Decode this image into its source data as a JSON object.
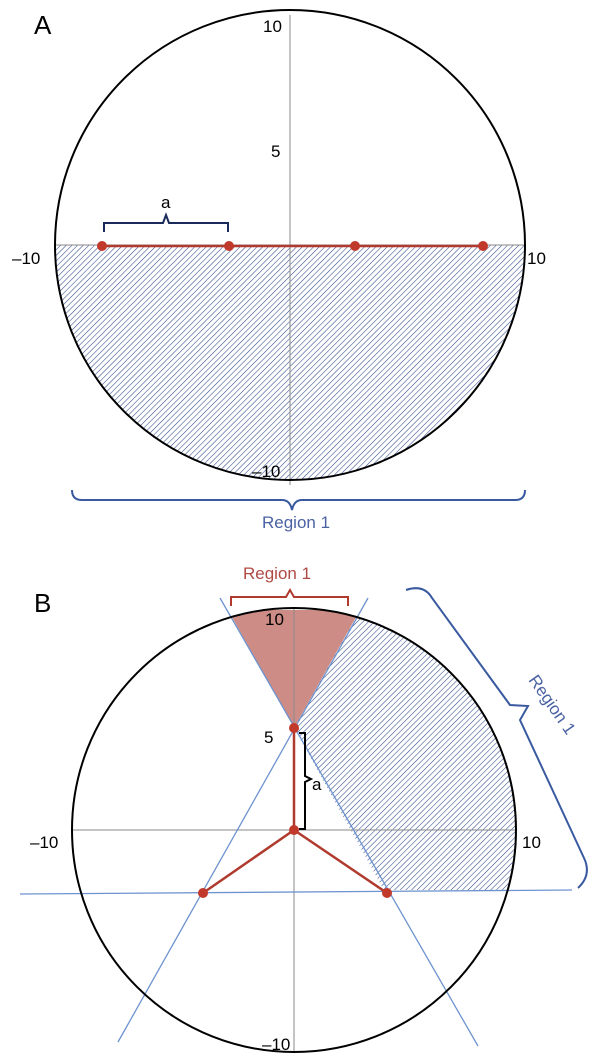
{
  "figure": {
    "panel_a": {
      "letter": "A",
      "ticks": {
        "top": "10",
        "mid": "5",
        "left": "–10",
        "right": "10",
        "bottom": "–10"
      },
      "bracket_label": "a",
      "region_label": "Region 1"
    },
    "panel_b": {
      "letter": "B",
      "ticks": {
        "top": "10",
        "mid": "5",
        "left": "–10",
        "right": "10",
        "bottom": "–10"
      },
      "bracket_label": "a",
      "region_label_red": "Region 1",
      "region_label_blue": "Region 1"
    },
    "colors": {
      "circle": "#000000",
      "axis": "#8a8a8a",
      "red": "#c0392b",
      "red_line": "#b03a2e",
      "red_fill": "#cd8c86",
      "blue_hatch": "#2f4a8a",
      "blue_line": "#6e93cf",
      "bracket_blue": "#3a5aa0",
      "bracket_red": "#b03a2e"
    }
  }
}
